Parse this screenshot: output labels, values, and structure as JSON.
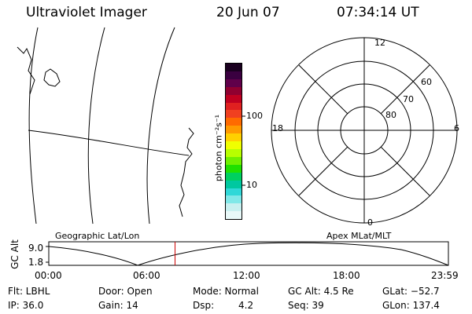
{
  "header": {
    "instrument": "Ultraviolet Imager",
    "date": "20 Jun 07",
    "time": "07:34:14 UT"
  },
  "colorbar": {
    "unit_label": "photon cm⁻²s⁻¹",
    "tick_100": "100",
    "tick_10": "10",
    "colors": [
      "#1a0020",
      "#3a0040",
      "#60004a",
      "#900030",
      "#c00020",
      "#e02020",
      "#f04020",
      "#ff6a00",
      "#ff9a00",
      "#ffd000",
      "#f0ff00",
      "#b8ff00",
      "#70f000",
      "#20e000",
      "#00d060",
      "#00c8a0",
      "#30d8d8",
      "#80e8e8",
      "#c8f0f0",
      "#e8f8f8"
    ]
  },
  "map": {
    "projection_label": "Geographic Lat/Lon"
  },
  "polar": {
    "label": "Apex MLat/MLT",
    "mlt_12": "12",
    "mlt_18": "18",
    "mlt_6": "6",
    "mlt_0": "0",
    "lat_60": "60",
    "lat_70": "70",
    "lat_80": "80"
  },
  "timeline": {
    "ylabel": "GC Alt",
    "ymax": "9.0",
    "ymin": "1.8",
    "ticks": [
      "00:00",
      "06:00",
      "12:00",
      "18:00",
      "23:59"
    ],
    "current_time_fraction": 0.316
  },
  "footer": {
    "flt": "Flt: LBHL",
    "ip": "IP: 36.0",
    "door": "Door: Open",
    "gain": "Gain: 14",
    "mode": "Mode: Normal",
    "dsp_label": "Dsp:",
    "dsp_value": "4.2",
    "gc_alt": "GC Alt: 4.5 Re",
    "seq": "Seq: 39",
    "glat": "GLat: −52.7",
    "glon": "GLon: 137.4"
  }
}
